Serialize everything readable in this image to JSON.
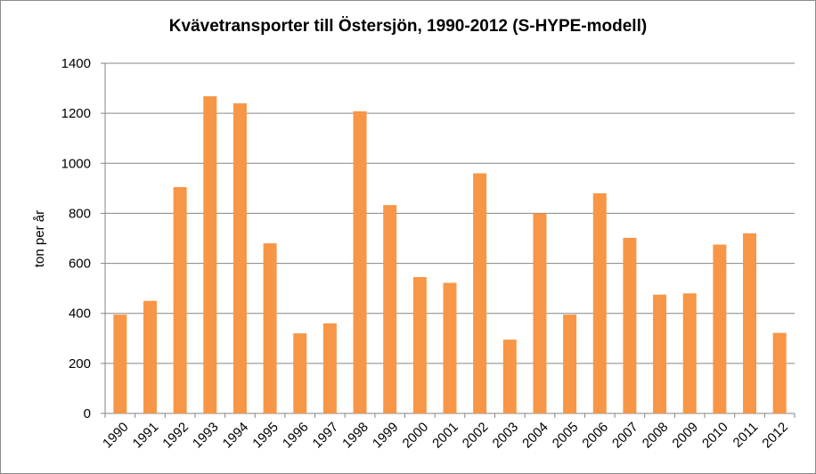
{
  "chart_data": {
    "type": "bar",
    "title": "Kvävetransporter till Östersjön, 1990-2012 (S-HYPE-modell)",
    "xlabel": "",
    "ylabel": "ton per år",
    "ylim": [
      0,
      1400
    ],
    "yticks": [
      0,
      200,
      400,
      600,
      800,
      1000,
      1200,
      1400
    ],
    "grid": true,
    "legend": "none",
    "bar_color": "#f79646",
    "categories": [
      "1990",
      "1991",
      "1992",
      "1993",
      "1994",
      "1995",
      "1996",
      "1997",
      "1998",
      "1999",
      "2000",
      "2001",
      "2002",
      "2003",
      "2004",
      "2005",
      "2006",
      "2007",
      "2008",
      "2009",
      "2010",
      "2011",
      "2012"
    ],
    "values": [
      395,
      450,
      905,
      1268,
      1240,
      680,
      320,
      360,
      1208,
      833,
      545,
      522,
      960,
      295,
      800,
      395,
      880,
      702,
      475,
      480,
      675,
      720,
      322
    ]
  }
}
